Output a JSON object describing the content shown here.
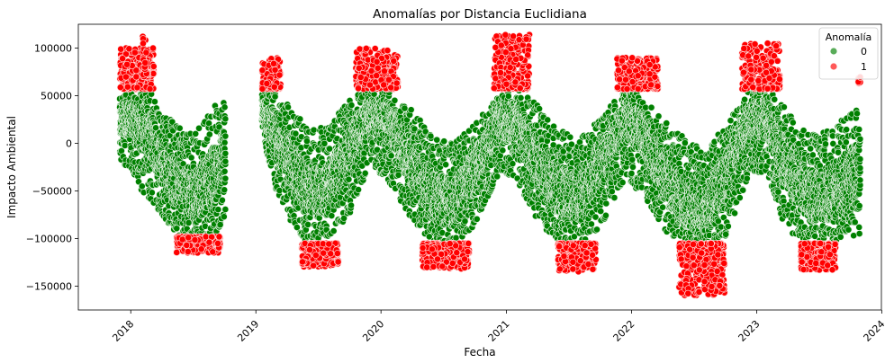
{
  "chart_data": {
    "type": "scatter",
    "title": "Anomalías por Distancia Euclidiana",
    "xlabel": "Fecha",
    "ylabel": "Impacto Ambiental",
    "x_axis_type": "date",
    "xlim": [
      "2017-08-01",
      "2023-12-31"
    ],
    "ylim": [
      -175000,
      125000
    ],
    "x_ticks": [
      "2018",
      "2019",
      "2020",
      "2021",
      "2022",
      "2023",
      "2024"
    ],
    "y_ticks": [
      100000,
      50000,
      0,
      -50000,
      -100000,
      -150000
    ],
    "y_tick_labels": [
      "100000",
      "50000",
      "0",
      "−50000",
      "−100000",
      "−150000"
    ],
    "grid": false,
    "legend": {
      "title": "Anomalía",
      "placement": "top-right",
      "entries": [
        {
          "label": "0",
          "color": "#008000"
        },
        {
          "label": "1",
          "color": "#ff0000"
        }
      ]
    },
    "series": [
      {
        "name": "0",
        "color": "#008000",
        "segments": [
          {
            "start": "2017-12-01",
            "end": "2018-10-05",
            "points": [
              [
                "2017-12-01",
                25000,
                60000,
                -25000
              ],
              [
                "2018-01-01",
                25000,
                58000,
                -25000
              ],
              [
                "2018-02-01",
                20000,
                56000,
                -50000
              ],
              [
                "2018-03-01",
                10000,
                55000,
                -60000
              ],
              [
                "2018-04-01",
                -20000,
                30000,
                -75000
              ],
              [
                "2018-05-01",
                -35000,
                25000,
                -90000
              ],
              [
                "2018-06-01",
                -50000,
                15000,
                -100000
              ],
              [
                "2018-07-01",
                -55000,
                10000,
                -105000
              ],
              [
                "2018-08-01",
                -50000,
                20000,
                -105000
              ],
              [
                "2018-09-01",
                -35000,
                40000,
                -100000
              ],
              [
                "2018-10-05",
                -10000,
                45000,
                -80000
              ]
            ]
          },
          {
            "start": "2019-01-20",
            "end": "2023-10-31",
            "points": [
              [
                "2019-01-20",
                35000,
                60000,
                10000
              ],
              [
                "2019-03-01",
                10000,
                55000,
                -50000
              ],
              [
                "2019-05-01",
                -30000,
                30000,
                -95000
              ],
              [
                "2019-06-15",
                -50000,
                15000,
                -110000
              ],
              [
                "2019-08-01",
                -45000,
                20000,
                -100000
              ],
              [
                "2019-10-01",
                -10000,
                45000,
                -75000
              ],
              [
                "2019-12-01",
                30000,
                60000,
                -20000
              ],
              [
                "2020-02-01",
                20000,
                55000,
                -45000
              ],
              [
                "2020-04-01",
                -20000,
                35000,
                -80000
              ],
              [
                "2020-06-01",
                -55000,
                10000,
                -105000
              ],
              [
                "2020-08-01",
                -65000,
                0,
                -110000
              ],
              [
                "2020-10-01",
                -30000,
                20000,
                -85000
              ],
              [
                "2020-12-15",
                20000,
                55000,
                -30000
              ],
              [
                "2021-02-01",
                25000,
                58000,
                -40000
              ],
              [
                "2021-04-01",
                -15000,
                40000,
                -80000
              ],
              [
                "2021-06-01",
                -50000,
                15000,
                -105000
              ],
              [
                "2021-08-01",
                -60000,
                5000,
                -110000
              ],
              [
                "2021-10-01",
                -25000,
                25000,
                -90000
              ],
              [
                "2021-12-15",
                25000,
                58000,
                -35000
              ],
              [
                "2022-02-01",
                15000,
                50000,
                -55000
              ],
              [
                "2022-04-01",
                -30000,
                25000,
                -90000
              ],
              [
                "2022-06-01",
                -60000,
                10000,
                -105000
              ],
              [
                "2022-08-01",
                -70000,
                -10000,
                -115000
              ],
              [
                "2022-10-01",
                -40000,
                20000,
                -100000
              ],
              [
                "2022-12-15",
                25000,
                58000,
                -30000
              ],
              [
                "2023-02-01",
                25000,
                58000,
                -35000
              ],
              [
                "2023-04-01",
                -20000,
                35000,
                -95000
              ],
              [
                "2023-06-01",
                -55000,
                10000,
                -105000
              ],
              [
                "2023-08-01",
                -55000,
                15000,
                -105000
              ],
              [
                "2023-10-31",
                -25000,
                40000,
                -95000
              ]
            ]
          }
        ]
      },
      {
        "name": "1",
        "color": "#ff0000",
        "clusters": [
          {
            "start": "2017-12-01",
            "end": "2018-03-10",
            "y_min": 57000,
            "y_max": 100000
          },
          {
            "start": "2018-02-05",
            "end": "2018-02-20",
            "y_min": 70000,
            "y_max": 115000
          },
          {
            "start": "2018-05-15",
            "end": "2018-09-20",
            "y_min": -115000,
            "y_max": -98000
          },
          {
            "start": "2019-01-20",
            "end": "2019-03-15",
            "y_min": 57000,
            "y_max": 90000
          },
          {
            "start": "2019-05-15",
            "end": "2019-08-30",
            "y_min": -130000,
            "y_max": -105000
          },
          {
            "start": "2019-10-20",
            "end": "2020-02-20",
            "y_min": 57000,
            "y_max": 100000
          },
          {
            "start": "2020-05-01",
            "end": "2020-09-15",
            "y_min": -132000,
            "y_max": -105000
          },
          {
            "start": "2020-11-25",
            "end": "2021-03-10",
            "y_min": 57000,
            "y_max": 115000
          },
          {
            "start": "2021-06-01",
            "end": "2021-09-20",
            "y_min": -135000,
            "y_max": -105000
          },
          {
            "start": "2021-11-20",
            "end": "2022-03-20",
            "y_min": 57000,
            "y_max": 90000
          },
          {
            "start": "2022-05-20",
            "end": "2022-09-30",
            "y_min": -160000,
            "y_max": -105000
          },
          {
            "start": "2022-11-20",
            "end": "2023-03-10",
            "y_min": 57000,
            "y_max": 105000
          },
          {
            "start": "2023-05-10",
            "end": "2023-08-20",
            "y_min": -133000,
            "y_max": -105000
          },
          {
            "start": "2023-10-25",
            "end": "2023-10-31",
            "y_min": 63000,
            "y_max": 70000
          }
        ]
      }
    ]
  }
}
